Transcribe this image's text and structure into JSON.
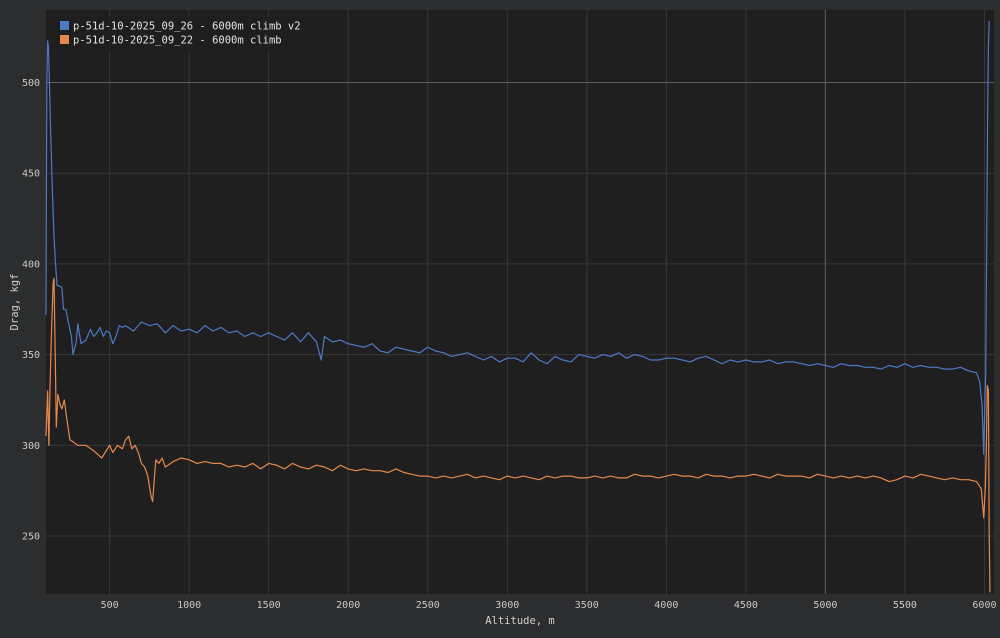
{
  "chart_data": {
    "type": "line",
    "xlabel": "Altitude, m",
    "ylabel": "Drag, kgf",
    "xlim": [
      100,
      6060
    ],
    "ylim": [
      218,
      540
    ],
    "x_ticks": [
      500,
      1000,
      1500,
      2000,
      2500,
      3000,
      3500,
      4000,
      4500,
      5000,
      5500,
      6000
    ],
    "y_ticks": [
      250,
      300,
      350,
      400,
      450,
      500
    ],
    "grid": true,
    "legend_position": "top-left",
    "crosshair": {
      "x": 5000,
      "y": 500
    },
    "series": [
      {
        "name": "p-51d-10-2025_09_26 - 6000m climb v2",
        "color": "#4e79c4",
        "points": [
          [
            100,
            372
          ],
          [
            105,
            500
          ],
          [
            110,
            523
          ],
          [
            115,
            520
          ],
          [
            120,
            505
          ],
          [
            130,
            470
          ],
          [
            140,
            440
          ],
          [
            150,
            415
          ],
          [
            160,
            400
          ],
          [
            170,
            388
          ],
          [
            180,
            388
          ],
          [
            200,
            387
          ],
          [
            210,
            375
          ],
          [
            225,
            375
          ],
          [
            240,
            368
          ],
          [
            260,
            360
          ],
          [
            270,
            350
          ],
          [
            290,
            357
          ],
          [
            300,
            367
          ],
          [
            320,
            356
          ],
          [
            350,
            358
          ],
          [
            380,
            364
          ],
          [
            400,
            360
          ],
          [
            420,
            362
          ],
          [
            440,
            365
          ],
          [
            460,
            360
          ],
          [
            480,
            363
          ],
          [
            500,
            362
          ],
          [
            520,
            356
          ],
          [
            540,
            360
          ],
          [
            560,
            366
          ],
          [
            580,
            365
          ],
          [
            600,
            366
          ],
          [
            650,
            363
          ],
          [
            700,
            368
          ],
          [
            750,
            366
          ],
          [
            800,
            367
          ],
          [
            850,
            362
          ],
          [
            900,
            366
          ],
          [
            950,
            363
          ],
          [
            1000,
            364
          ],
          [
            1050,
            362
          ],
          [
            1100,
            366
          ],
          [
            1150,
            363
          ],
          [
            1200,
            365
          ],
          [
            1250,
            362
          ],
          [
            1300,
            363
          ],
          [
            1350,
            360
          ],
          [
            1400,
            362
          ],
          [
            1450,
            360
          ],
          [
            1500,
            362
          ],
          [
            1550,
            360
          ],
          [
            1600,
            358
          ],
          [
            1650,
            362
          ],
          [
            1700,
            357
          ],
          [
            1750,
            362
          ],
          [
            1800,
            357
          ],
          [
            1830,
            347
          ],
          [
            1850,
            360
          ],
          [
            1900,
            357
          ],
          [
            1950,
            358
          ],
          [
            2000,
            356
          ],
          [
            2050,
            355
          ],
          [
            2100,
            354
          ],
          [
            2150,
            356
          ],
          [
            2200,
            352
          ],
          [
            2250,
            351
          ],
          [
            2300,
            354
          ],
          [
            2350,
            353
          ],
          [
            2400,
            352
          ],
          [
            2450,
            351
          ],
          [
            2500,
            354
          ],
          [
            2550,
            352
          ],
          [
            2600,
            351
          ],
          [
            2650,
            349
          ],
          [
            2700,
            350
          ],
          [
            2750,
            351
          ],
          [
            2800,
            349
          ],
          [
            2850,
            347
          ],
          [
            2900,
            349
          ],
          [
            2950,
            346
          ],
          [
            3000,
            348
          ],
          [
            3050,
            348
          ],
          [
            3100,
            346
          ],
          [
            3150,
            351
          ],
          [
            3200,
            347
          ],
          [
            3250,
            345
          ],
          [
            3300,
            349
          ],
          [
            3350,
            347
          ],
          [
            3400,
            346
          ],
          [
            3450,
            350
          ],
          [
            3500,
            349
          ],
          [
            3550,
            348
          ],
          [
            3600,
            350
          ],
          [
            3650,
            349
          ],
          [
            3700,
            351
          ],
          [
            3750,
            348
          ],
          [
            3800,
            350
          ],
          [
            3850,
            349
          ],
          [
            3900,
            347
          ],
          [
            3950,
            347
          ],
          [
            4000,
            348
          ],
          [
            4050,
            348
          ],
          [
            4100,
            347
          ],
          [
            4150,
            346
          ],
          [
            4200,
            348
          ],
          [
            4250,
            349
          ],
          [
            4300,
            347
          ],
          [
            4350,
            345
          ],
          [
            4400,
            347
          ],
          [
            4450,
            346
          ],
          [
            4500,
            347
          ],
          [
            4550,
            346
          ],
          [
            4600,
            346
          ],
          [
            4650,
            347
          ],
          [
            4700,
            345
          ],
          [
            4750,
            346
          ],
          [
            4800,
            346
          ],
          [
            4850,
            345
          ],
          [
            4900,
            344
          ],
          [
            4950,
            345
          ],
          [
            5000,
            344
          ],
          [
            5050,
            343
          ],
          [
            5100,
            345
          ],
          [
            5150,
            344
          ],
          [
            5200,
            344
          ],
          [
            5250,
            343
          ],
          [
            5300,
            343
          ],
          [
            5350,
            342
          ],
          [
            5400,
            344
          ],
          [
            5450,
            343
          ],
          [
            5500,
            345
          ],
          [
            5550,
            343
          ],
          [
            5600,
            344
          ],
          [
            5650,
            343
          ],
          [
            5700,
            343
          ],
          [
            5750,
            342
          ],
          [
            5800,
            342
          ],
          [
            5850,
            343
          ],
          [
            5900,
            341
          ],
          [
            5950,
            340
          ],
          [
            5970,
            335
          ],
          [
            5985,
            322
          ],
          [
            5995,
            295
          ],
          [
            6002,
            320
          ],
          [
            6008,
            340
          ],
          [
            6015,
            420
          ],
          [
            6020,
            480
          ],
          [
            6025,
            520
          ],
          [
            6030,
            534
          ]
        ]
      },
      {
        "name": "p-51d-10-2025_09_22 - 6000m climb",
        "color": "#e58a4e",
        "points": [
          [
            100,
            305
          ],
          [
            110,
            330
          ],
          [
            118,
            300
          ],
          [
            125,
            332
          ],
          [
            135,
            365
          ],
          [
            145,
            390
          ],
          [
            150,
            392
          ],
          [
            160,
            340
          ],
          [
            165,
            310
          ],
          [
            175,
            328
          ],
          [
            190,
            322
          ],
          [
            200,
            320
          ],
          [
            215,
            325
          ],
          [
            230,
            315
          ],
          [
            250,
            303
          ],
          [
            270,
            302
          ],
          [
            300,
            300
          ],
          [
            350,
            300
          ],
          [
            400,
            297
          ],
          [
            450,
            293
          ],
          [
            500,
            300
          ],
          [
            520,
            296
          ],
          [
            550,
            300
          ],
          [
            580,
            298
          ],
          [
            600,
            303
          ],
          [
            620,
            305
          ],
          [
            640,
            298
          ],
          [
            660,
            300
          ],
          [
            680,
            296
          ],
          [
            700,
            290
          ],
          [
            720,
            288
          ],
          [
            740,
            283
          ],
          [
            760,
            272
          ],
          [
            770,
            269
          ],
          [
            790,
            292
          ],
          [
            810,
            290
          ],
          [
            830,
            293
          ],
          [
            850,
            288
          ],
          [
            900,
            291
          ],
          [
            950,
            293
          ],
          [
            1000,
            292
          ],
          [
            1050,
            290
          ],
          [
            1100,
            291
          ],
          [
            1150,
            290
          ],
          [
            1200,
            290
          ],
          [
            1250,
            288
          ],
          [
            1300,
            289
          ],
          [
            1350,
            288
          ],
          [
            1400,
            290
          ],
          [
            1450,
            287
          ],
          [
            1500,
            290
          ],
          [
            1550,
            289
          ],
          [
            1600,
            287
          ],
          [
            1650,
            290
          ],
          [
            1700,
            288
          ],
          [
            1750,
            287
          ],
          [
            1800,
            289
          ],
          [
            1850,
            288
          ],
          [
            1900,
            286
          ],
          [
            1950,
            289
          ],
          [
            2000,
            287
          ],
          [
            2050,
            286
          ],
          [
            2100,
            287
          ],
          [
            2150,
            286
          ],
          [
            2200,
            286
          ],
          [
            2250,
            285
          ],
          [
            2300,
            287
          ],
          [
            2350,
            285
          ],
          [
            2400,
            284
          ],
          [
            2450,
            283
          ],
          [
            2500,
            283
          ],
          [
            2550,
            282
          ],
          [
            2600,
            283
          ],
          [
            2650,
            282
          ],
          [
            2700,
            283
          ],
          [
            2750,
            284
          ],
          [
            2800,
            282
          ],
          [
            2850,
            283
          ],
          [
            2900,
            282
          ],
          [
            2950,
            281
          ],
          [
            3000,
            283
          ],
          [
            3050,
            282
          ],
          [
            3100,
            283
          ],
          [
            3150,
            282
          ],
          [
            3200,
            281
          ],
          [
            3250,
            283
          ],
          [
            3300,
            282
          ],
          [
            3350,
            283
          ],
          [
            3400,
            283
          ],
          [
            3450,
            282
          ],
          [
            3500,
            282
          ],
          [
            3550,
            283
          ],
          [
            3600,
            282
          ],
          [
            3650,
            283
          ],
          [
            3700,
            282
          ],
          [
            3750,
            282
          ],
          [
            3800,
            284
          ],
          [
            3850,
            283
          ],
          [
            3900,
            283
          ],
          [
            3950,
            282
          ],
          [
            4000,
            283
          ],
          [
            4050,
            284
          ],
          [
            4100,
            283
          ],
          [
            4150,
            283
          ],
          [
            4200,
            282
          ],
          [
            4250,
            284
          ],
          [
            4300,
            283
          ],
          [
            4350,
            283
          ],
          [
            4400,
            282
          ],
          [
            4450,
            283
          ],
          [
            4500,
            283
          ],
          [
            4550,
            284
          ],
          [
            4600,
            283
          ],
          [
            4650,
            282
          ],
          [
            4700,
            284
          ],
          [
            4750,
            283
          ],
          [
            4800,
            283
          ],
          [
            4850,
            283
          ],
          [
            4900,
            282
          ],
          [
            4950,
            284
          ],
          [
            5000,
            283
          ],
          [
            5050,
            282
          ],
          [
            5100,
            283
          ],
          [
            5150,
            282
          ],
          [
            5200,
            283
          ],
          [
            5250,
            282
          ],
          [
            5300,
            283
          ],
          [
            5350,
            282
          ],
          [
            5400,
            280
          ],
          [
            5450,
            281
          ],
          [
            5500,
            283
          ],
          [
            5550,
            282
          ],
          [
            5600,
            284
          ],
          [
            5650,
            283
          ],
          [
            5700,
            282
          ],
          [
            5750,
            281
          ],
          [
            5800,
            282
          ],
          [
            5850,
            281
          ],
          [
            5900,
            281
          ],
          [
            5950,
            280
          ],
          [
            5980,
            276
          ],
          [
            5995,
            260
          ],
          [
            6005,
            276
          ],
          [
            6012,
            300
          ],
          [
            6018,
            333
          ],
          [
            6025,
            330
          ],
          [
            6030,
            250
          ],
          [
            6035,
            219
          ]
        ]
      }
    ]
  }
}
